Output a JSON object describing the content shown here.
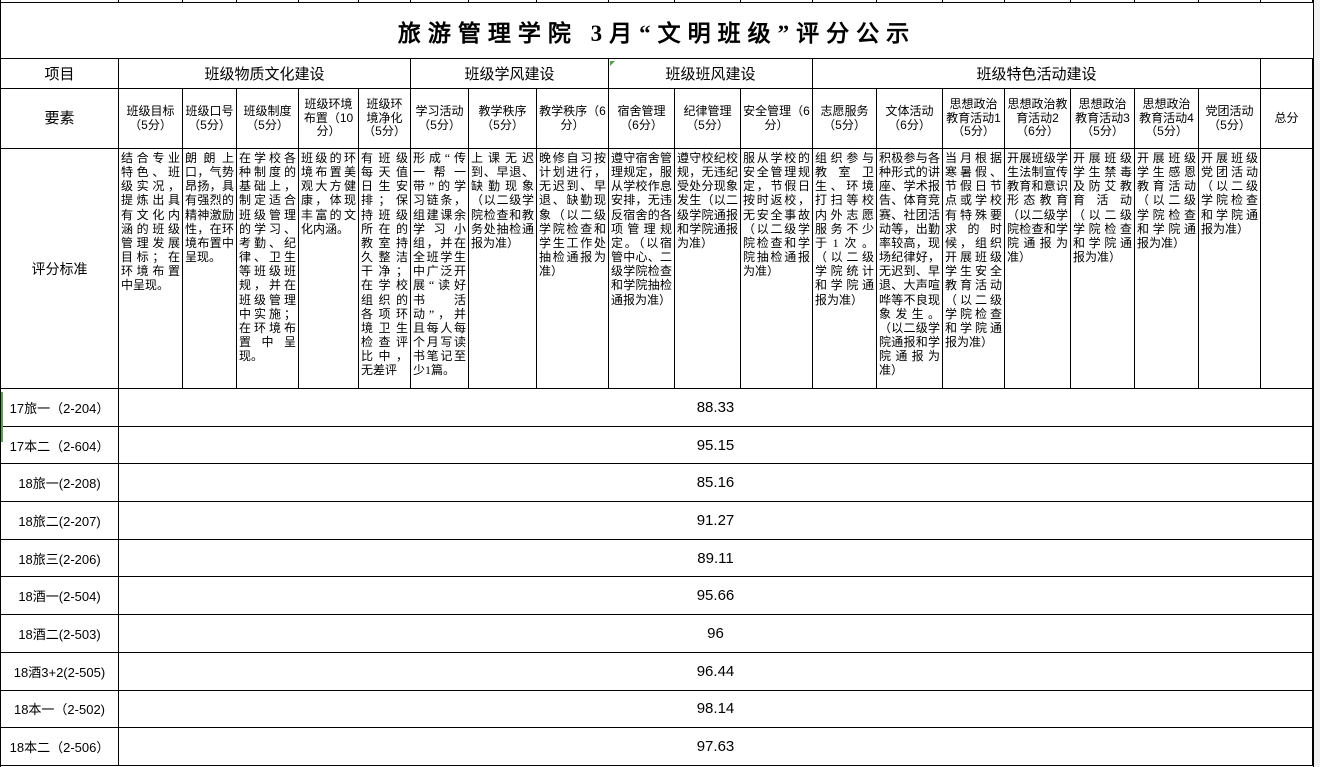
{
  "title": "旅游管理学院 3月“文明班级”评分公示",
  "colors": {
    "border": "#000000",
    "background": "#ffffff",
    "marker_green": "#54a24b",
    "gutter_gray": "#f0f0f0"
  },
  "table": {
    "project_label": "项目",
    "element_label": "要素",
    "criteria_label": "评分标准",
    "total_label": "总分",
    "groups": [
      {
        "label": "班级物质文化建设"
      },
      {
        "label": "班级学风建设"
      },
      {
        "label": "班级班风建设"
      },
      {
        "label": "班级特色活动建设"
      }
    ],
    "elements": [
      {
        "label": "班级目标（5分）",
        "criteria": "结合专业特色、班级实况，提炼出具有文化内涵的班级管理发展目标；在环境布置中呈现。"
      },
      {
        "label": "班级口号（5分）",
        "criteria": "朗朗上口，气势昂扬，具有强烈的精神激励性，在环境布置中呈现。"
      },
      {
        "label": "班级制度（5分）",
        "criteria": "在学校各种制度的基础上，制定适合班级管理的学习、考勤、纪律、卫生等班级班规，并在班级管理中实施；在环境布置中呈现。"
      },
      {
        "label": "班级环境布置（10分）",
        "criteria": "班级的环境布置美观大方健康，体现丰富的文化内涵。"
      },
      {
        "label": "班级环境净化（5分）",
        "criteria": "有班级每天值日生安排；保持班级所在的教室持久整洁干净；在学校组织的各项环境卫生检查评比中，无差评"
      },
      {
        "label": "学习活动（5分）",
        "criteria": "形成“传一帮一带”的学习链条，组建课余学习小组，并在全班学生中广泛开展“读好书活动”，并且每人每个月写读书笔记至少1篇。"
      },
      {
        "label": "教学秩序（5分）",
        "criteria": "上课无迟到、早退、缺勤现象（以二级学院检查和教务处抽检通报为准）"
      },
      {
        "label": "教学秩序（6分）",
        "criteria": "晚修自习按计划进行，无迟到、早退、缺勤现象（以二级学院检查和学生工作处抽检通报为准）"
      },
      {
        "label": "宿舍管理（6分）",
        "criteria": "遵守宿舍管理规定，服从学校作息安排，无违反宿舍的各项管理规定。（以宿管中心、二级学院检查和学院抽检通报为准）"
      },
      {
        "label": "纪律管理（5分）",
        "criteria": "遵守校纪校规，无违纪受处分现象发生（以二级学院通报和学院通报为准）"
      },
      {
        "label": "安全管理（6分）",
        "criteria": "服从学校的安全管理规定，节假日按时返校，无安全事故（以二级学院检查和学院抽检通报为准）"
      },
      {
        "label": "志愿服务（5分）",
        "criteria": "组织参与教室卫生、环境打扫等校内外志愿服务不少于1次。（以二级学院统计和学院通报为准）"
      },
      {
        "label": "文体活动（6分）",
        "criteria": "积极参与各种形式的讲座、学术报告、体育竞赛、社团活动等，出勤率较高，现场纪律好，无迟到、早退、大声喧哗等不良现象发生。（以二级学院通报和学院通报为准）"
      },
      {
        "label": "思想政治教育活动1（5分）",
        "criteria": "当月根据寒暑假、节假日节点或学校有特殊要求的时候，组织开展班级学生安全教育活动（以二级学院检查和学院通报为准）"
      },
      {
        "label": "思想政治教育活动2（6分）",
        "criteria": "开展班级学生法制宣传教育和意识形态教育（以二级学院检查和学院通报为准）"
      },
      {
        "label": "思想政治教育活动3（5分）",
        "criteria": "开展班级学生禁毒及防艾教育活动（以二级学院检查和学院通报为准）"
      },
      {
        "label": "思想政治教育活动4（5分）",
        "criteria": "开展班级学生感恩教育活动（以二级学院检查和学院通报为准）"
      },
      {
        "label": "党团活动（5分）",
        "criteria": "开展班级党团活动（以二级学院检查和学院通报为准）"
      }
    ],
    "rows": [
      {
        "class_name": "17旅一（2-204）",
        "score": "88.33"
      },
      {
        "class_name": "17本二（2-604）",
        "score": "95.15"
      },
      {
        "class_name": "18旅一(2-208)",
        "score": "85.16"
      },
      {
        "class_name": "18旅二(2-207)",
        "score": "91.27"
      },
      {
        "class_name": "18旅三(2-206)",
        "score": "89.11"
      },
      {
        "class_name": "18酒一(2-504)",
        "score": "95.66"
      },
      {
        "class_name": "18酒二(2-503)",
        "score": "96"
      },
      {
        "class_name": "18酒3+2(2-505)",
        "score": "96.44"
      },
      {
        "class_name": "18本一（2-502)",
        "score": "98.14"
      },
      {
        "class_name": "18本二（2-506）",
        "score": "97.63"
      }
    ]
  }
}
